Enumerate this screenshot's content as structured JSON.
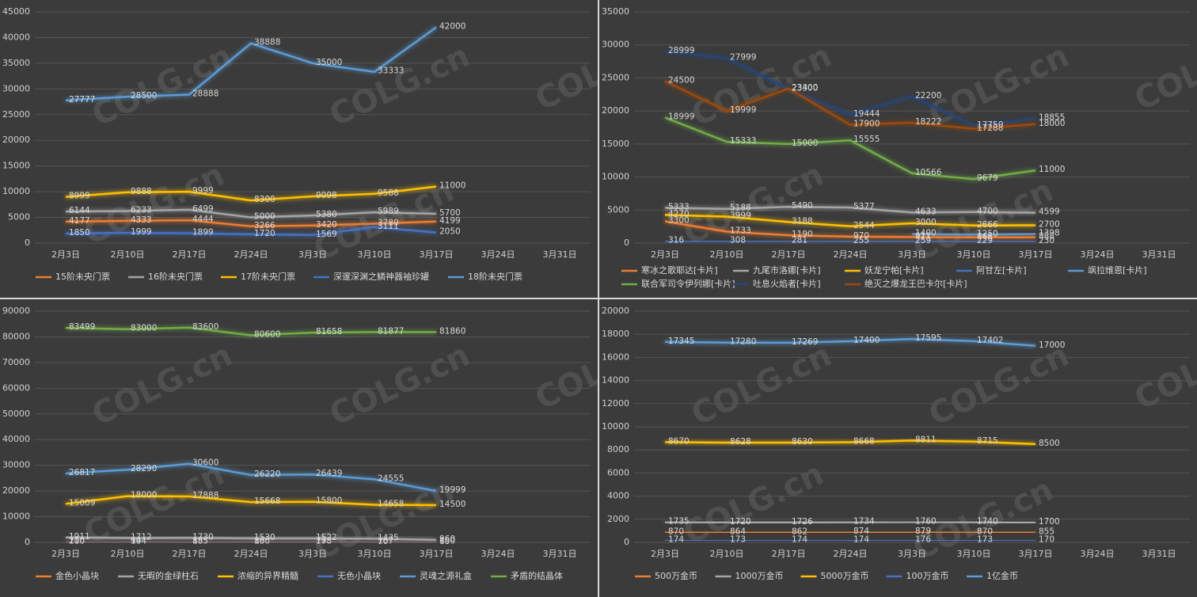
{
  "watermark": "COLG.cn",
  "chart_data": [
    {
      "type": "line",
      "grid": true,
      "legend": "bottom",
      "categories": [
        "2月3日",
        "2月10日",
        "2月17日",
        "2月24日",
        "3月3日",
        "3月10日",
        "3月17日",
        "3月24日",
        "3月31日"
      ],
      "ylim": [
        0,
        45000
      ],
      "yticks": [
        0,
        5000,
        10000,
        15000,
        20000,
        25000,
        30000,
        35000,
        40000,
        45000
      ],
      "series": [
        {
          "name": "15阶未央门票",
          "color": "#ed7d31",
          "values": [
            4177,
            4333,
            4444,
            3266,
            3420,
            3780,
            4199,
            null,
            null
          ]
        },
        {
          "name": "16阶未央门票",
          "color": "#a5a5a5",
          "values": [
            6144,
            6233,
            6499,
            5000,
            5380,
            5989,
            5700,
            null,
            null
          ]
        },
        {
          "name": "17阶未央门票",
          "color": "#ffc000",
          "values": [
            8999,
            9888,
            9999,
            8300,
            9098,
            9588,
            11000,
            null,
            null
          ]
        },
        {
          "name": "深邃深渊之鳞神器袖珍罐",
          "color": "#4472c4",
          "values": [
            1850,
            1999,
            1899,
            1720,
            1569,
            3111,
            2050,
            null,
            null
          ]
        },
        {
          "name": "18阶未央门票",
          "color": "#5b9bd5",
          "values": [
            27777,
            28500,
            28888,
            38888,
            35000,
            33333,
            42000,
            null,
            null
          ]
        }
      ]
    },
    {
      "type": "line",
      "grid": true,
      "legend": "bottom",
      "categories": [
        "2月3日",
        "2月10日",
        "2月17日",
        "2月24日",
        "3月3日",
        "3月10日",
        "3月17日",
        "3月24日",
        "3月31日"
      ],
      "ylim": [
        0,
        35000
      ],
      "yticks": [
        0,
        5000,
        10000,
        15000,
        20000,
        25000,
        30000,
        35000
      ],
      "series": [
        {
          "name": "寒冰之歌耶达[卡片]",
          "color": "#ed7d31",
          "values": [
            3300,
            1733,
            1190,
            970,
            911,
            866,
            888,
            null,
            null
          ]
        },
        {
          "name": "九尾市洛娜[卡片]",
          "color": "#a5a5a5",
          "values": [
            5333,
            5188,
            5490,
            5377,
            4633,
            4700,
            4599,
            null,
            null
          ]
        },
        {
          "name": "妖龙宁帕[卡片]",
          "color": "#ffc000",
          "values": [
            4270,
            3999,
            3188,
            2544,
            3000,
            2666,
            2700,
            null,
            null
          ]
        },
        {
          "name": "阿甘左[卡片]",
          "color": "#4472c4",
          "values": [
            316,
            308,
            281,
            255,
            259,
            229,
            230,
            null,
            null
          ]
        },
        {
          "name": "飒拉维恩[卡片]",
          "color": "#5b9bd5",
          "values": [
            null,
            null,
            null,
            null,
            1400,
            1250,
            1398,
            null,
            null
          ]
        },
        {
          "name": "联合军司令伊列娜[卡片]",
          "color": "#70ad47",
          "values": [
            18999,
            15333,
            15000,
            15555,
            10566,
            9679,
            11000,
            null,
            null
          ]
        },
        {
          "name": "吐息火焰者[卡片]",
          "color": "#264478",
          "values": [
            28999,
            27999,
            23300,
            19444,
            22200,
            17750,
            18855,
            null,
            null
          ]
        },
        {
          "name": "绝灭之爆龙王巴卡尔[卡片]",
          "color": "#9e480e",
          "values": [
            24500,
            19999,
            23400,
            17900,
            18222,
            17288,
            18000,
            null,
            null
          ]
        }
      ]
    },
    {
      "type": "line",
      "grid": true,
      "legend": "bottom",
      "categories": [
        "2月3日",
        "2月10日",
        "2月17日",
        "2月24日",
        "3月3日",
        "3月10日",
        "3月17日",
        "3月24日",
        "3月31日"
      ],
      "ylim": [
        0,
        90000
      ],
      "yticks": [
        0,
        10000,
        20000,
        30000,
        40000,
        50000,
        60000,
        70000,
        80000,
        90000
      ],
      "series": [
        {
          "name": "金色小晶块",
          "color": "#ed7d31",
          "values": [
            210,
            194,
            185,
            180,
            178,
            167,
            150,
            null,
            null
          ]
        },
        {
          "name": "无暇的金绿柱石",
          "color": "#a5a5a5",
          "values": [
            1911,
            1712,
            1730,
            1530,
            1522,
            1435,
            960,
            null,
            null
          ]
        },
        {
          "name": "浓缩的异界精髓",
          "color": "#ffc000",
          "values": [
            15009,
            18000,
            17888,
            15668,
            15800,
            14658,
            14500,
            null,
            null
          ]
        },
        {
          "name": "无色小晶块",
          "color": "#4472c4",
          "values": [
            100,
            94,
            88,
            80,
            79,
            70,
            60,
            null,
            null
          ]
        },
        {
          "name": "灵魂之源礼盒",
          "color": "#5b9bd5",
          "values": [
            26817,
            28290,
            30600,
            26220,
            26439,
            24555,
            19999,
            null,
            null
          ]
        },
        {
          "name": "矛盾的结晶体",
          "color": "#70ad47",
          "values": [
            83499,
            83000,
            83600,
            80600,
            81658,
            81877,
            81860,
            null,
            null
          ]
        }
      ]
    },
    {
      "type": "line",
      "grid": true,
      "legend": "bottom",
      "categories": [
        "2月3日",
        "2月10日",
        "2月17日",
        "2月24日",
        "3月3日",
        "3月10日",
        "3月17日",
        "3月24日",
        "3月31日"
      ],
      "ylim": [
        0,
        20000
      ],
      "yticks": [
        0,
        2000,
        4000,
        6000,
        8000,
        10000,
        12000,
        14000,
        16000,
        18000,
        20000
      ],
      "series": [
        {
          "name": "500万金币",
          "color": "#ed7d31",
          "values": [
            870,
            864,
            862,
            874,
            879,
            870,
            855,
            null,
            null
          ]
        },
        {
          "name": "1000万金币",
          "color": "#a5a5a5",
          "values": [
            1735,
            1720,
            1726,
            1734,
            1760,
            1740,
            1700,
            null,
            null
          ]
        },
        {
          "name": "5000万金币",
          "color": "#ffc000",
          "values": [
            8670,
            8628,
            8630,
            8668,
            8811,
            8715,
            8500,
            null,
            null
          ]
        },
        {
          "name": "100万金币",
          "color": "#4472c4",
          "values": [
            174,
            173,
            174,
            174,
            176,
            173,
            170,
            null,
            null
          ]
        },
        {
          "name": "1亿金币",
          "color": "#5b9bd5",
          "values": [
            17345,
            17280,
            17269,
            17400,
            17595,
            17402,
            17000,
            null,
            null
          ]
        }
      ]
    }
  ]
}
